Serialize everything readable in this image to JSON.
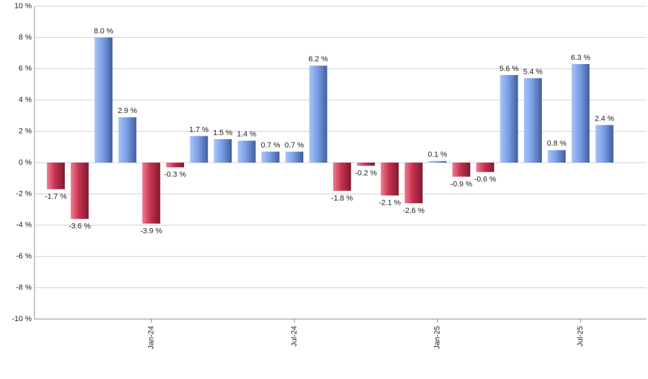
{
  "chart_data": {
    "type": "bar",
    "categories": [
      null,
      null,
      null,
      null,
      "Jan-24",
      null,
      null,
      null,
      null,
      null,
      "Jul-24",
      null,
      null,
      null,
      null,
      null,
      "Jan-25",
      null,
      null,
      null,
      null,
      null,
      "Jul-25",
      null
    ],
    "values": [
      -1.7,
      -3.6,
      8.0,
      2.9,
      -3.9,
      -0.3,
      1.7,
      1.5,
      1.4,
      0.7,
      0.7,
      6.2,
      -1.8,
      -0.2,
      -2.1,
      -2.6,
      0.1,
      -0.9,
      -0.6,
      5.6,
      5.4,
      0.8,
      6.3,
      2.4
    ],
    "value_labels": [
      "-1.7 %",
      "-3.6 %",
      "8.0 %",
      "2.9 %",
      "-3.9 %",
      "-0.3 %",
      "1.7 %",
      "1.5 %",
      "1.4 %",
      "0.7 %",
      "0.7 %",
      "6.2 %",
      "-1.8 %",
      "-0.2 %",
      "-2.1 %",
      "-2.6 %",
      "0.1 %",
      "-0.9 %",
      "-0.6 %",
      "5.6 %",
      "5.4 %",
      "0.8 %",
      "6.3 %",
      "2.4 %"
    ],
    "positive_color": "#7b9fe6",
    "negative_color": "#c8324f",
    "ylim": [
      -10,
      10
    ],
    "yticks": [
      {
        "value": -10,
        "label": "-10 %"
      },
      {
        "value": -8,
        "label": "-8 %"
      },
      {
        "value": -6,
        "label": "-6 %"
      },
      {
        "value": -4,
        "label": "-4 %"
      },
      {
        "value": -2,
        "label": "-2 %"
      },
      {
        "value": 0,
        "label": "0 %"
      },
      {
        "value": 2,
        "label": "2 %"
      },
      {
        "value": 4,
        "label": "4 %"
      },
      {
        "value": 6,
        "label": "6 %"
      },
      {
        "value": 8,
        "label": "8 %"
      },
      {
        "value": 10,
        "label": "10 %"
      }
    ],
    "grid": true
  }
}
